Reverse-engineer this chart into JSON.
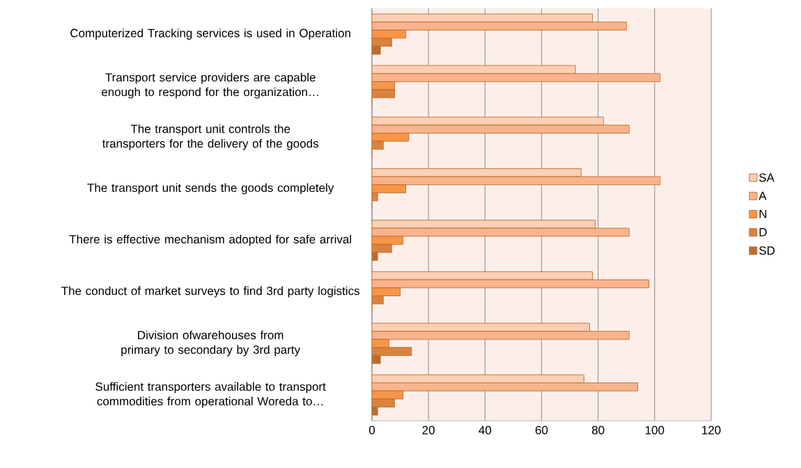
{
  "chart_data": {
    "type": "bar",
    "orientation": "horizontal",
    "categories": [
      "Computerized Tracking services is used in Operation",
      "Transport service providers are capable enough to respond for the organization…",
      "The transport unit controls the transporters for the delivery of the goods",
      "The transport unit sends the goods completely",
      "There is effective mechanism adopted for safe arrival",
      "The conduct of market surveys to find 3rd party logistics",
      "Division ofwarehouses from primary to secondary by 3rd party",
      "Sufficient transporters available to transport commodities from operational Woreda to…"
    ],
    "series": [
      {
        "name": "SA",
        "color": "#fcd0b4",
        "values": [
          78,
          72,
          82,
          74,
          79,
          78,
          77,
          75
        ]
      },
      {
        "name": "A",
        "color": "#f9b48e",
        "values": [
          90,
          102,
          91,
          102,
          91,
          98,
          91,
          94
        ]
      },
      {
        "name": "N",
        "color": "#f79646",
        "values": [
          12,
          8,
          13,
          12,
          11,
          10,
          6,
          11
        ]
      },
      {
        "name": "D",
        "color": "#d9833f",
        "values": [
          7,
          8,
          4,
          2,
          7,
          4,
          14,
          8
        ]
      },
      {
        "name": "SD",
        "color": "#b86f35",
        "values": [
          3,
          0,
          0,
          0,
          2,
          0,
          3,
          2
        ]
      }
    ],
    "xlim": [
      0,
      120
    ],
    "xticks": [
      0,
      20,
      40,
      60,
      80,
      100,
      120
    ],
    "grid": "x",
    "legend": "right"
  }
}
